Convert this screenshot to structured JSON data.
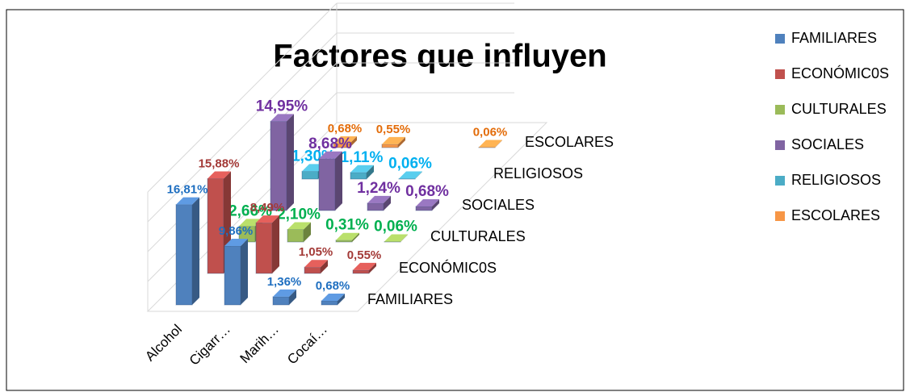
{
  "chart_data": {
    "type": "bar3d",
    "title": "Factores que influyen",
    "categories": [
      "Alcohol",
      "Cigarr…",
      "Marih…",
      "Cocaí…"
    ],
    "ylim": [
      0,
      20
    ],
    "legend": "right",
    "series": [
      {
        "name": "FAMILIARES",
        "color": "#4f81bd",
        "label_color": "#1f6fc0",
        "values": [
          16.81,
          9.86,
          1.36,
          0.68
        ],
        "value_labels": [
          "16,81%",
          "9,86%",
          "1,36%",
          "0,68%"
        ]
      },
      {
        "name": "ECONÓMIC0S",
        "color": "#c0504d",
        "label_color": "#a33a37",
        "values": [
          15.88,
          8.49,
          1.05,
          0.55
        ],
        "value_labels": [
          "15,88%",
          "8,49%",
          "1,05%",
          "0,55%"
        ]
      },
      {
        "name": "CULTURALES",
        "color": "#9bbb59",
        "label_color": "#00b050",
        "values": [
          2.66,
          2.1,
          0.31,
          0.06
        ],
        "value_labels": [
          "2,66%",
          "2,10%",
          "0,31%",
          "0,06%"
        ]
      },
      {
        "name": "SOCIALES",
        "color": "#8064a2",
        "label_color": "#7030a0",
        "values": [
          14.95,
          8.68,
          1.24,
          0.68
        ],
        "value_labels": [
          "14,95%",
          "8,68%",
          "1,24%",
          "0,68%"
        ]
      },
      {
        "name": "RELIGIOSOS",
        "color": "#4bacc6",
        "label_color": "#00b0f0",
        "values": [
          1.3,
          1.11,
          0.06,
          null
        ],
        "value_labels": [
          "1,30%",
          "1,11%",
          "0,06%",
          null
        ]
      },
      {
        "name": "ESCOLARES",
        "color": "#f79646",
        "label_color": "#e36c09",
        "values": [
          0.68,
          0.55,
          null,
          0.06
        ],
        "value_labels": [
          "0,68%",
          "0,55%",
          null,
          "0,06%"
        ]
      }
    ]
  }
}
